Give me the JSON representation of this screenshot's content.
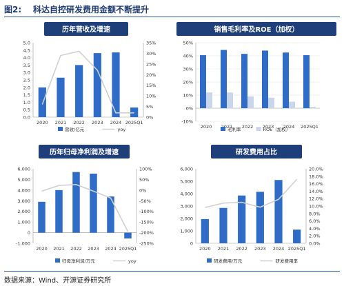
{
  "figure": {
    "label": "图2:",
    "title": "科达自控研发费用金额不断提升",
    "source": "数据来源：Wind、开源证券研究所"
  },
  "colors": {
    "bar": "#2e6cc8",
    "bar_light": "#c9d6ec",
    "line": "#d0d0d0",
    "banner": "#1f3f7a",
    "grid": "#e0e0e0"
  },
  "chart_data": [
    {
      "type": "bar",
      "title": "历年营收及增速",
      "categories": [
        "2020",
        "2021",
        "2022",
        "2023",
        "2024",
        "2025Q1"
      ],
      "series": [
        {
          "name": "营收/亿元",
          "type": "bar",
          "axis": "left",
          "values": [
            2.0,
            2.65,
            3.5,
            4.3,
            4.35,
            0.65
          ]
        },
        {
          "name": "yoy",
          "type": "line",
          "axis": "right",
          "values": [
            6,
            29,
            31,
            22,
            2,
            2
          ]
        }
      ],
      "ylim": [
        0,
        5.0
      ],
      "yticks": [
        "0.0",
        "0.5",
        "1.0",
        "1.5",
        "2.0",
        "2.5",
        "3.0",
        "3.5",
        "4.0",
        "4.5",
        "5.0"
      ],
      "y2lim": [
        0,
        35
      ],
      "y2ticks": [
        "0%",
        "5%",
        "10%",
        "15%",
        "20%",
        "25%",
        "30%",
        "35%"
      ]
    },
    {
      "type": "bar",
      "title": "销售毛利率及ROE（加权）",
      "categories": [
        "2020",
        "2021",
        "2022",
        "2023",
        "2024",
        "2025Q1"
      ],
      "series": [
        {
          "name": "毛利率",
          "values": [
            40.5,
            44.5,
            41.5,
            44,
            42.5,
            40.5
          ]
        },
        {
          "name": "ROE（加权）",
          "values": [
            12,
            12,
            9,
            8,
            5,
            1
          ]
        }
      ],
      "ylim": [
        -10,
        50
      ],
      "yticks": [
        "-10%",
        "0%",
        "10%",
        "20%",
        "30%",
        "40%",
        "50%"
      ]
    },
    {
      "type": "bar",
      "title": "历年归母净利润及增速",
      "categories": [
        "2020",
        "2021",
        "2022",
        "2023",
        "2024",
        "2025Q1"
      ],
      "series": [
        {
          "name": "归母净利润/万元",
          "type": "bar",
          "axis": "left",
          "values": [
            2900,
            4000,
            5700,
            5550,
            3400,
            -550
          ]
        },
        {
          "name": "yoy",
          "type": "line",
          "axis": "right",
          "values": [
            -5,
            22,
            26,
            -5,
            -37,
            -195
          ]
        }
      ],
      "ylim": [
        -1000,
        6000
      ],
      "yticks": [
        "-1,000",
        "0",
        "1,000",
        "2,000",
        "3,000",
        "4,000",
        "5,000",
        "6,000"
      ],
      "y2lim": [
        -250,
        100
      ],
      "y2ticks": [
        "-250%",
        "-200%",
        "-150%",
        "-100%",
        "-50%",
        "0%",
        "50%",
        "100%"
      ]
    },
    {
      "type": "bar",
      "title": "研发费用占比",
      "categories": [
        "2020",
        "2021",
        "2022",
        "2023",
        "2024",
        "2025Q1"
      ],
      "series": [
        {
          "name": "研发费用/万元",
          "type": "bar",
          "axis": "left",
          "values": [
            1950,
            2850,
            3850,
            4150,
            5100,
            1100
          ]
        },
        {
          "name": "研发费用率",
          "type": "line",
          "axis": "right",
          "values": [
            9.6,
            10.8,
            11.0,
            9.7,
            11.8,
            17.2
          ]
        }
      ],
      "ylim": [
        0,
        6000
      ],
      "yticks": [
        "0",
        "1,000",
        "2,000",
        "3,000",
        "4,000",
        "5,000",
        "6,000"
      ],
      "y2lim": [
        0,
        20
      ],
      "y2ticks": [
        "0.0%",
        "2.0%",
        "4.0%",
        "6.0%",
        "8.0%",
        "10.0%",
        "12.0%",
        "14.0%",
        "16.0%",
        "18.0%",
        "20.0%"
      ]
    }
  ]
}
